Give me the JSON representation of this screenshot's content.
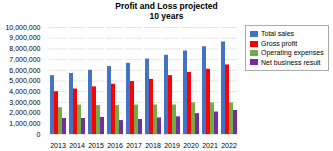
{
  "chart_data": {
    "type": "bar",
    "title": "Profit and Loss projected",
    "subtitle": "10 years",
    "categories": [
      "2013",
      "2014",
      "2015",
      "2016",
      "2017",
      "2018",
      "2019",
      "2020",
      "2021",
      "2022"
    ],
    "series": [
      {
        "name": "Total sales",
        "color": "#4472C4",
        "values": [
          5500000,
          5700000,
          6000000,
          6350000,
          6650000,
          7050000,
          7400000,
          7800000,
          8200000,
          8650000
        ]
      },
      {
        "name": "Gross profit",
        "color": "#FF0000",
        "values": [
          4000000,
          4250000,
          4450000,
          4700000,
          4950000,
          5150000,
          5500000,
          5800000,
          6100000,
          6500000
        ]
      },
      {
        "name": "Operating expenses",
        "color": "#70AD47",
        "values": [
          2500000,
          2750000,
          2700000,
          2700000,
          2750000,
          2750000,
          2750000,
          2950000,
          2950000,
          2950000
        ]
      },
      {
        "name": "Net business result",
        "color": "#7030A0",
        "values": [
          1500000,
          1500000,
          1600000,
          1300000,
          1400000,
          1550000,
          1650000,
          1950000,
          2100000,
          2250000
        ]
      }
    ],
    "ylim": [
      0,
      10000000
    ],
    "yticks": [
      0,
      {
        "value": 1000000,
        "label": "1,000,000"
      },
      {
        "value": 2000000,
        "label": "2,000,000"
      },
      {
        "value": 3000000,
        "label": "3,000,000"
      },
      {
        "value": 4000000,
        "label": "4,000,000"
      },
      {
        "value": 5000000,
        "label": "5,000,000"
      },
      {
        "value": 6000000,
        "label": "6,000,000"
      },
      {
        "value": 7000000,
        "label": "7,000,000"
      },
      {
        "value": 8000000,
        "label": "8,000,000"
      },
      {
        "value": 9000000,
        "label": "9,000,000"
      },
      {
        "value": 10000000,
        "label": "10,000,000"
      }
    ],
    "grid": true,
    "legend": "right"
  }
}
